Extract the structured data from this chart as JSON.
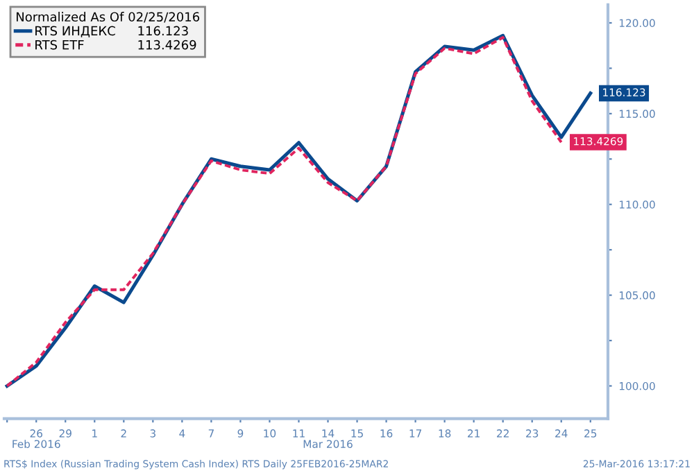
{
  "chart_data": {
    "type": "line",
    "categories": [
      null,
      "26",
      "29",
      "1",
      "2",
      "3",
      "4",
      "7",
      "9",
      "10",
      "11",
      "14",
      "15",
      "16",
      "17",
      "18",
      "21",
      "22",
      "23",
      "24",
      "25"
    ],
    "series": [
      {
        "name": "RTS ИНДЕКС",
        "color": "#0b4a8e",
        "line_style": "solid",
        "values": [
          100,
          101.1,
          103.2,
          105.5,
          104.6,
          107.2,
          110.0,
          112.5,
          112.1,
          111.9,
          113.4,
          111.4,
          110.2,
          112.1,
          117.3,
          118.7,
          118.5,
          119.3,
          116.0,
          113.7,
          116.123
        ],
        "value_labels": [
          null,
          null,
          null,
          null,
          null,
          null,
          null,
          null,
          null,
          null,
          null,
          null,
          null,
          null,
          null,
          null,
          null,
          null,
          null,
          null,
          "116.123"
        ]
      },
      {
        "name": "RTS ETF",
        "color": "#e0245e",
        "line_style": "dashed",
        "values": [
          100,
          101.3,
          103.5,
          105.3,
          105.3,
          107.3,
          110.0,
          112.4,
          111.9,
          111.7,
          113.1,
          111.2,
          110.2,
          112.1,
          117.2,
          118.6,
          118.3,
          119.2,
          115.7,
          113.4269,
          null
        ],
        "value_labels": [
          null,
          null,
          null,
          null,
          null,
          null,
          null,
          null,
          null,
          null,
          null,
          null,
          null,
          null,
          null,
          null,
          null,
          null,
          null,
          "113.4269",
          null
        ]
      }
    ],
    "legend_title": "Normalized As Of 02/25/2016",
    "legend": "top left",
    "ylim": [
      98.2,
      121
    ],
    "yticks": [
      {
        "value": 100,
        "label": "100.00"
      },
      {
        "value": 102.5,
        "label": null
      },
      {
        "value": 105,
        "label": "105.00"
      },
      {
        "value": 107.5,
        "label": null
      },
      {
        "value": 110,
        "label": "110.00"
      },
      {
        "value": 112.5,
        "label": null
      },
      {
        "value": 115,
        "label": "115.00"
      },
      {
        "value": 117.5,
        "label": null
      },
      {
        "value": 120,
        "label": "120.00"
      }
    ],
    "annotations": [
      "Feb 2016",
      "Mar 2016",
      "RTS$ Index (Russian Trading System Cash Index) RTS Daily 25FEB2016-25MAR2",
      "25-Mar-2016 13:17:21"
    ],
    "grid": false
  }
}
